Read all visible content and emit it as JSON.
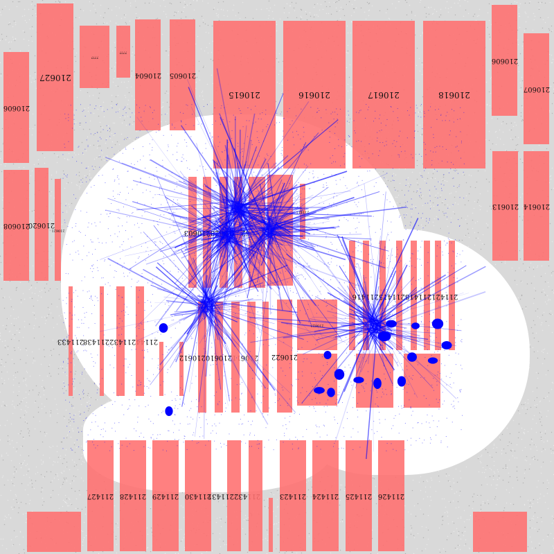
{
  "colors": {
    "background_gray": "#d9d9d9",
    "floor_white": "#ffffff",
    "room_fill": "#ff6e6e",
    "point_cloud_blue": "#0000ff",
    "noise_gray": "#9a9a9a"
  },
  "rooms": [
    {
      "id": "r1",
      "label": "210606"
    },
    {
      "id": "r2",
      "label": "210627"
    },
    {
      "id": "r3",
      "label": "????"
    },
    {
      "id": "r4",
      "label": "????"
    },
    {
      "id": "r5",
      "label": "210604"
    },
    {
      "id": "r6",
      "label": "210605"
    },
    {
      "id": "r7",
      "label": "210615"
    },
    {
      "id": "r8",
      "label": "210616"
    },
    {
      "id": "r9",
      "label": "210617"
    },
    {
      "id": "r10",
      "label": "210618"
    },
    {
      "id": "r11",
      "label": "210606"
    },
    {
      "id": "r12",
      "label": "210607"
    },
    {
      "id": "r13",
      "label": "210608"
    },
    {
      "id": "r14",
      "label": "210620"
    },
    {
      "id": "r15",
      "label": "210621"
    },
    {
      "id": "r16",
      "label": "210613"
    },
    {
      "id": "r17",
      "label": "210614"
    },
    {
      "id": "r18",
      "label": "210629210628210603"
    },
    {
      "id": "r19",
      "label": "211411"
    },
    {
      "id": "r20",
      "label": "211433"
    },
    {
      "id": "r21",
      "label": "21144211432211438"
    },
    {
      "id": "r22",
      "label": "210611210610210612"
    },
    {
      "id": "r23",
      "label": "210622"
    },
    {
      "id": "r24",
      "label": "210623"
    },
    {
      "id": "r25",
      "label": "211427"
    },
    {
      "id": "r26",
      "label": "211428"
    },
    {
      "id": "r27",
      "label": "211429"
    },
    {
      "id": "r28",
      "label": "211430"
    },
    {
      "id": "r29",
      "label": "211432211431"
    },
    {
      "id": "r30",
      "label": "211423"
    },
    {
      "id": "r31",
      "label": "211424"
    },
    {
      "id": "r32",
      "label": "211425"
    },
    {
      "id": "r33",
      "label": "211426"
    },
    {
      "id": "r34",
      "label": "211421211418211415211416"
    },
    {
      "id": "r35",
      "label": "211411"
    }
  ]
}
